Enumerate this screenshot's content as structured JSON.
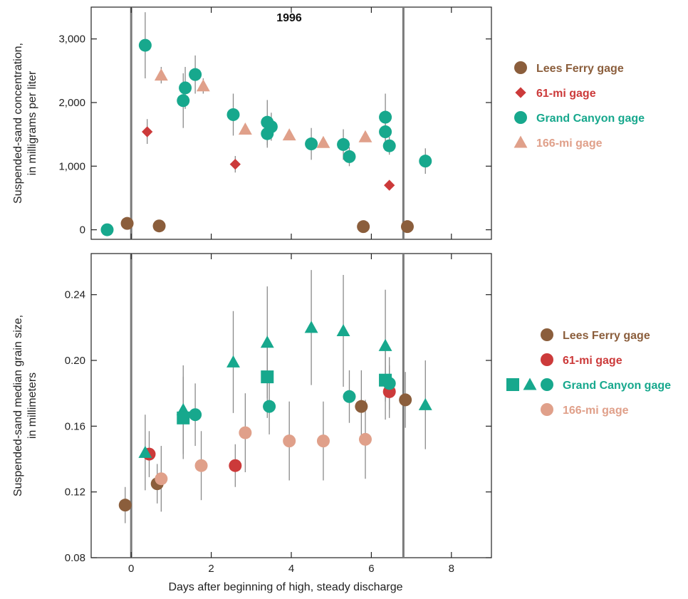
{
  "colors": {
    "lees": "#8B5E3C",
    "mi61": "#CC3A3A",
    "grand": "#17A88D",
    "mi166": "#E0A08A",
    "errorbar": "#8a8a8a",
    "vline": "#7a7a7a"
  },
  "chart_data": [
    {
      "type": "scatter",
      "title": "1996",
      "xlabel": "",
      "ylabel": "Suspended-sand concentration,\nin milligrams per liter",
      "xlim": [
        -1,
        9
      ],
      "ylim": [
        -150,
        3500
      ],
      "xticks": [
        0,
        2,
        4,
        6,
        8
      ],
      "yticks": [
        0,
        1000,
        2000,
        3000
      ],
      "ytick_labels": [
        "0",
        "1,000",
        "2,000",
        "3,000"
      ],
      "vlines": [
        0,
        6.8
      ],
      "legend": {
        "placement": "right",
        "entries": [
          {
            "label": "Lees Ferry gage",
            "marker": "circle",
            "color_key": "lees"
          },
          {
            "label": "61-mi gage",
            "marker": "diamond",
            "color_key": "mi61"
          },
          {
            "label": "Grand Canyon gage",
            "marker": "circle",
            "color_key": "grand"
          },
          {
            "label": "166-mi gage",
            "marker": "triangle",
            "color_key": "mi166"
          }
        ]
      },
      "series": [
        {
          "name": "Lees Ferry gage",
          "marker": "circle",
          "color_key": "lees",
          "points": [
            [
              -0.1,
              100,
              null,
              null
            ],
            [
              0.7,
              60,
              null,
              null
            ],
            [
              5.8,
              50,
              null,
              null
            ],
            [
              6.9,
              50,
              null,
              null
            ]
          ]
        },
        {
          "name": "61-mi gage",
          "marker": "diamond",
          "color_key": "mi61",
          "points": [
            [
              0.4,
              1540,
              1350,
              1740
            ],
            [
              2.6,
              1030,
              900,
              1160
            ],
            [
              6.45,
              700,
              null,
              null
            ]
          ]
        },
        {
          "name": "Grand Canyon gage",
          "marker": "circle",
          "color_key": "grand",
          "points": [
            [
              -0.6,
              0,
              null,
              null
            ],
            [
              0.35,
              2900,
              2380,
              3420
            ],
            [
              1.3,
              2030,
              1600,
              2460
            ],
            [
              1.35,
              2230,
              1900,
              2560
            ],
            [
              1.6,
              2440,
              2140,
              2740
            ],
            [
              2.55,
              1810,
              1480,
              2140
            ],
            [
              3.4,
              1690,
              1330,
              2040
            ],
            [
              3.4,
              1510,
              1290,
              1730
            ],
            [
              3.5,
              1620,
              1400,
              1840
            ],
            [
              4.5,
              1350,
              1100,
              1600
            ],
            [
              5.3,
              1340,
              1100,
              1580
            ],
            [
              5.45,
              1150,
              1000,
              1300
            ],
            [
              6.35,
              1770,
              1400,
              2140
            ],
            [
              6.35,
              1540,
              1300,
              1780
            ],
            [
              6.45,
              1320,
              1180,
              1460
            ],
            [
              7.35,
              1080,
              880,
              1280
            ]
          ]
        },
        {
          "name": "166-mi gage",
          "marker": "triangle",
          "color_key": "mi166",
          "points": [
            [
              0.75,
              2430,
              2300,
              2560
            ],
            [
              1.8,
              2260,
              2140,
              2380
            ],
            [
              2.85,
              1580,
              null,
              null
            ],
            [
              3.95,
              1490,
              null,
              null
            ],
            [
              4.8,
              1370,
              null,
              null
            ],
            [
              5.85,
              1460,
              null,
              null
            ]
          ]
        }
      ]
    },
    {
      "type": "scatter",
      "title": "",
      "xlabel": "Days after beginning of high, steady discharge",
      "ylabel": "Suspended-sand median grain size,\nin millimeters",
      "xlim": [
        -1,
        9
      ],
      "ylim": [
        0.08,
        0.265
      ],
      "xticks": [
        0,
        2,
        4,
        6,
        8
      ],
      "yticks": [
        0.08,
        0.12,
        0.16,
        0.2,
        0.24
      ],
      "ytick_labels": [
        "0.08",
        "0.12",
        "0.16",
        "0.20",
        "0.24"
      ],
      "vlines": [
        0,
        6.8
      ],
      "legend": {
        "placement": "right",
        "entries": [
          {
            "label": "Lees Ferry gage",
            "markers": [
              "circle"
            ],
            "color_key": "lees"
          },
          {
            "label": "61-mi gage",
            "markers": [
              "circle"
            ],
            "color_key": "mi61"
          },
          {
            "label": "Grand Canyon gage",
            "markers": [
              "square",
              "triangle",
              "circle"
            ],
            "color_key": "grand"
          },
          {
            "label": "166-mi gage",
            "markers": [
              "circle"
            ],
            "color_key": "mi166"
          }
        ]
      },
      "series": [
        {
          "name": "Lees Ferry gage",
          "marker": "circle",
          "color_key": "lees",
          "points": [
            [
              -0.15,
              0.112,
              0.101,
              0.123
            ],
            [
              0.65,
              0.125,
              0.113,
              0.137
            ],
            [
              5.75,
              0.172,
              0.15,
              0.194
            ],
            [
              6.85,
              0.176,
              0.159,
              0.193
            ]
          ]
        },
        {
          "name": "61-mi gage",
          "marker": "circle",
          "color_key": "mi61",
          "points": [
            [
              0.45,
              0.143,
              0.129,
              0.157
            ],
            [
              2.6,
              0.136,
              0.123,
              0.149
            ],
            [
              6.45,
              0.181,
              0.165,
              0.197
            ]
          ]
        },
        {
          "name": "Grand Canyon gage",
          "marker": "triangle",
          "color_key": "grand",
          "points": [
            [
              0.35,
              0.144,
              0.121,
              0.167
            ],
            [
              1.3,
              0.17,
              0.143,
              0.197
            ],
            [
              2.55,
              0.199,
              0.168,
              0.23
            ],
            [
              3.4,
              0.211,
              0.177,
              0.245
            ],
            [
              4.5,
              0.22,
              0.185,
              0.255
            ],
            [
              5.3,
              0.218,
              0.184,
              0.252
            ],
            [
              6.35,
              0.209,
              0.175,
              0.243
            ],
            [
              7.35,
              0.173,
              0.146,
              0.2
            ]
          ]
        },
        {
          "name": "Grand Canyon gage",
          "marker": "square",
          "color_key": "grand",
          "points": [
            [
              1.3,
              0.165,
              0.14,
              0.19
            ],
            [
              3.4,
              0.19,
              0.165,
              0.215
            ],
            [
              6.35,
              0.188,
              0.164,
              0.212
            ]
          ]
        },
        {
          "name": "Grand Canyon gage",
          "marker": "circle",
          "color_key": "grand",
          "points": [
            [
              1.6,
              0.167,
              0.148,
              0.186
            ],
            [
              3.45,
              0.172,
              0.155,
              0.189
            ],
            [
              5.45,
              0.178,
              0.162,
              0.194
            ],
            [
              6.45,
              0.186,
              0.17,
              0.202
            ]
          ]
        },
        {
          "name": "166-mi gage",
          "marker": "circle",
          "color_key": "mi166",
          "points": [
            [
              0.75,
              0.128,
              0.108,
              0.148
            ],
            [
              1.75,
              0.136,
              0.115,
              0.157
            ],
            [
              2.85,
              0.156,
              0.132,
              0.18
            ],
            [
              3.95,
              0.151,
              0.127,
              0.175
            ],
            [
              4.8,
              0.151,
              0.127,
              0.175
            ],
            [
              5.85,
              0.152,
              0.128,
              0.176
            ]
          ]
        }
      ]
    }
  ]
}
